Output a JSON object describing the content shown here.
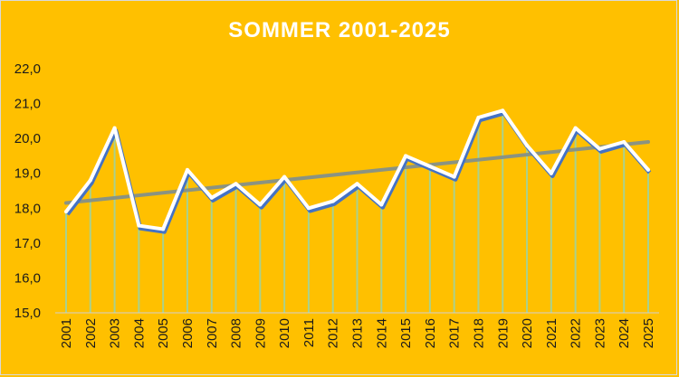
{
  "chart_data": {
    "type": "line",
    "title": "SOMMER 2001-2025",
    "categories": [
      "2001",
      "2002",
      "2003",
      "2004",
      "2005",
      "2006",
      "2007",
      "2008",
      "2009",
      "2010",
      "2011",
      "2012",
      "2013",
      "2014",
      "2015",
      "2016",
      "2017",
      "2018",
      "2019",
      "2020",
      "2021",
      "2022",
      "2023",
      "2024",
      "2025"
    ],
    "series": [
      {
        "values": [
          17.9,
          18.8,
          20.3,
          17.5,
          17.4,
          19.1,
          18.3,
          18.7,
          18.1,
          18.9,
          18.0,
          18.2,
          18.7,
          18.1,
          19.5,
          19.2,
          18.9,
          20.6,
          20.8,
          19.8,
          19.0,
          20.3,
          19.7,
          19.9,
          19.1
        ]
      }
    ],
    "trendline": {
      "start": 18.15,
      "end": 19.9
    },
    "yticks": [
      "15,0",
      "16,0",
      "17,0",
      "18,0",
      "19,0",
      "20,0",
      "21,0",
      "22,0"
    ],
    "ylim": [
      15,
      22
    ],
    "colors": {
      "background": "#FFC000",
      "line": "#4472C4",
      "line_highlight": "#ffffff",
      "trend": "#7f8f8f",
      "drop_lines": "#a9d18e"
    },
    "grid": false,
    "legend": "none"
  }
}
